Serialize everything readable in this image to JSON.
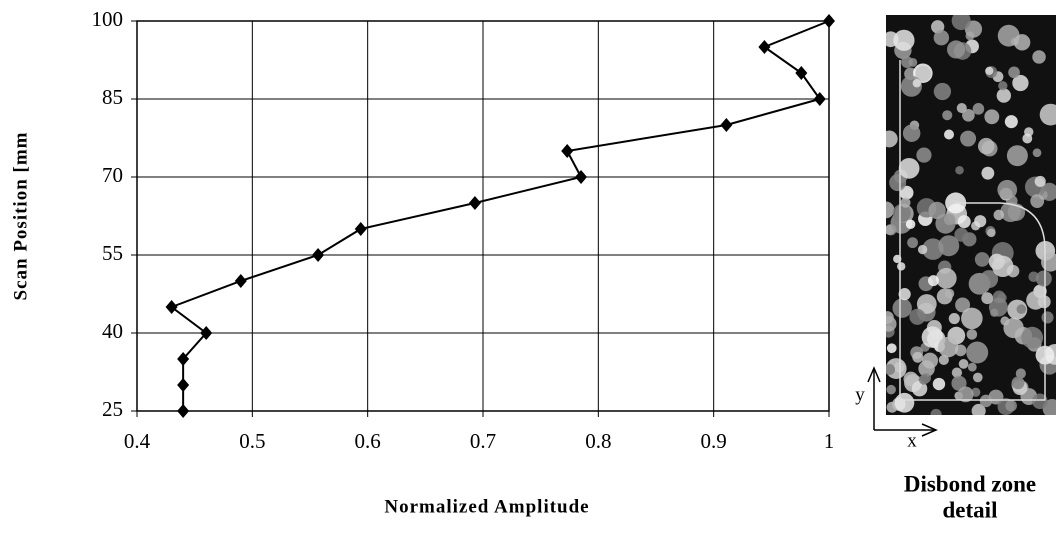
{
  "chart_data": {
    "type": "line",
    "xlabel": "Normalized Amplitude",
    "ylabel": "Scan Position [mm",
    "x": [
      0.44,
      0.44,
      0.44,
      0.46,
      0.43,
      0.49,
      0.557,
      0.594,
      0.693,
      0.785,
      0.773,
      0.911,
      0.992,
      0.976,
      0.944,
      1.0
    ],
    "series": [
      {
        "color": "#000000",
        "values": [
          25,
          30,
          35,
          40,
          45,
          50,
          55,
          60,
          65,
          70,
          75,
          80,
          85,
          90,
          95,
          100
        ]
      }
    ],
    "xlim": [
      0.4,
      1
    ],
    "xticks": [
      0.4,
      0.5,
      0.6,
      0.7,
      0.8,
      0.9,
      1
    ],
    "ylim": [
      25,
      100
    ],
    "yticks": [
      25,
      40,
      55,
      70,
      85,
      100
    ],
    "grid": true,
    "annotations": {
      "image_caption_1": "Disbond zone",
      "image_caption_2": "detail",
      "image_x_axis": "x",
      "image_y_axis": "y"
    }
  }
}
